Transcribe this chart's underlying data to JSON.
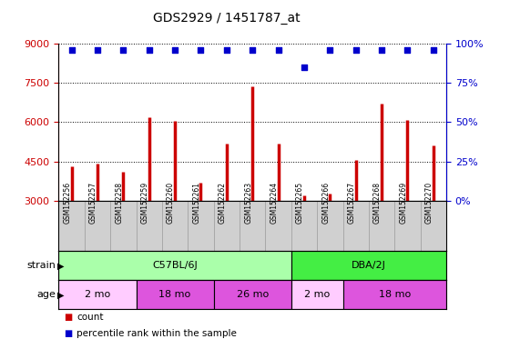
{
  "title": "GDS2929 / 1451787_at",
  "samples": [
    "GSM152256",
    "GSM152257",
    "GSM152258",
    "GSM152259",
    "GSM152260",
    "GSM152261",
    "GSM152262",
    "GSM152263",
    "GSM152264",
    "GSM152265",
    "GSM152266",
    "GSM152267",
    "GSM152268",
    "GSM152269",
    "GSM152270"
  ],
  "counts": [
    4300,
    4430,
    4100,
    6200,
    6050,
    3680,
    5180,
    7380,
    5180,
    3200,
    3260,
    4550,
    6700,
    6080,
    5100
  ],
  "percentile_ranks": [
    96,
    96,
    96,
    96,
    96,
    96,
    96,
    96,
    96,
    85,
    96,
    96,
    96,
    96,
    96
  ],
  "ylim_left": [
    3000,
    9000
  ],
  "ylim_right": [
    0,
    100
  ],
  "yticks_left": [
    3000,
    4500,
    6000,
    7500,
    9000
  ],
  "yticks_right": [
    0,
    25,
    50,
    75,
    100
  ],
  "bar_color": "#cc0000",
  "dot_color": "#0000cc",
  "strain_groups": [
    {
      "label": "C57BL/6J",
      "start": 0,
      "end": 9,
      "color": "#aaffaa"
    },
    {
      "label": "DBA/2J",
      "start": 9,
      "end": 15,
      "color": "#44ee44"
    }
  ],
  "age_groups": [
    {
      "label": "2 mo",
      "start": 0,
      "end": 3,
      "color": "#ffccff"
    },
    {
      "label": "18 mo",
      "start": 3,
      "end": 6,
      "color": "#dd55dd"
    },
    {
      "label": "26 mo",
      "start": 6,
      "end": 9,
      "color": "#dd55dd"
    },
    {
      "label": "2 mo",
      "start": 9,
      "end": 11,
      "color": "#ffccff"
    },
    {
      "label": "18 mo",
      "start": 11,
      "end": 15,
      "color": "#dd55dd"
    }
  ],
  "strain_label": "strain",
  "age_label": "age",
  "legend_count": "count",
  "legend_percentile": "percentile rank within the sample",
  "tick_color_left": "#cc0000",
  "tick_color_right": "#0000cc",
  "label_bg_color": "#d0d0d0"
}
